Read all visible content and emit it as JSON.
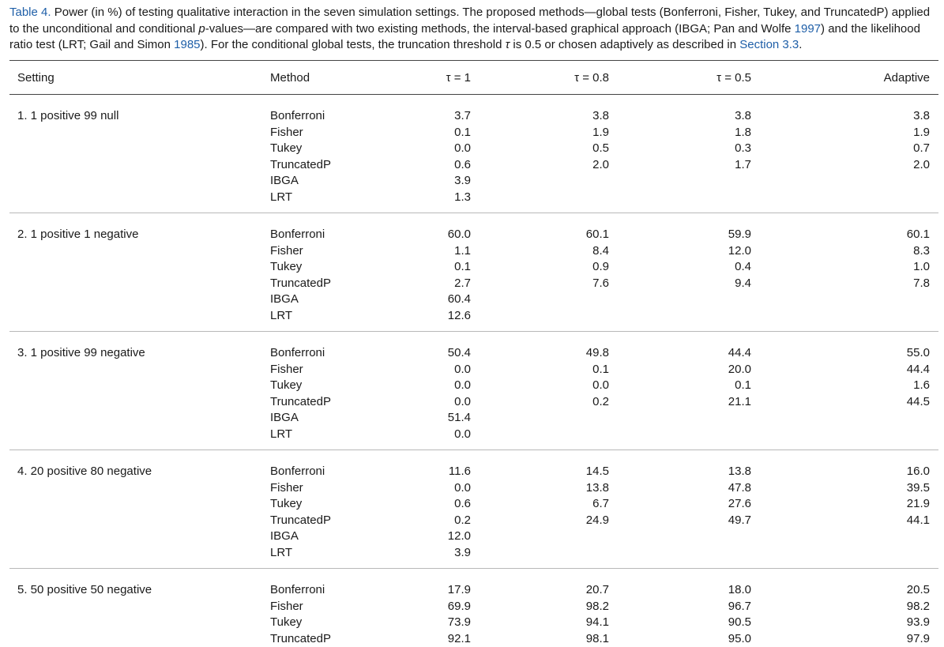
{
  "caption": {
    "label": "Table 4.",
    "text_a": "Power (in %) of testing qualitative interaction in the seven simulation settings. The proposed methods—global tests (Bonferroni, Fisher, Tukey, and TruncatedP) applied to the unconditional and conditional ",
    "p_italic": "p",
    "text_b": "-values—are compared with two existing methods, the interval-based graphical approach (IBGA; Pan and Wolfe ",
    "ref1": "1997",
    "text_c": ") and the likelihood ratio test (LRT; Gail and Simon ",
    "ref2": "1985",
    "text_d": "). For the conditional global tests, the truncation threshold ",
    "tau_symbol": "τ",
    "text_e": " is 0.5 or chosen adaptively as described in ",
    "section_ref": "Section 3.3",
    "text_f": "."
  },
  "table": {
    "headers": {
      "setting": "Setting",
      "method": "Method",
      "tau1": "τ = 1",
      "tau08": "τ = 0.8",
      "tau05": "τ = 0.5",
      "adaptive": "Adaptive"
    },
    "groups": [
      {
        "setting": "1. 1 positive 99 null",
        "rows": [
          {
            "method": "Bonferroni",
            "t1": "3.7",
            "t08": "3.8",
            "t05": "3.8",
            "adaptive": "3.8"
          },
          {
            "method": "Fisher",
            "t1": "0.1",
            "t08": "1.9",
            "t05": "1.8",
            "adaptive": "1.9"
          },
          {
            "method": "Tukey",
            "t1": "0.0",
            "t08": "0.5",
            "t05": "0.3",
            "adaptive": "0.7"
          },
          {
            "method": "TruncatedP",
            "t1": "0.6",
            "t08": "2.0",
            "t05": "1.7",
            "adaptive": "2.0"
          },
          {
            "method": "IBGA",
            "t1": "3.9",
            "t08": "",
            "t05": "",
            "adaptive": ""
          },
          {
            "method": "LRT",
            "t1": "1.3",
            "t08": "",
            "t05": "",
            "adaptive": ""
          }
        ]
      },
      {
        "setting": "2. 1 positive 1 negative",
        "rows": [
          {
            "method": "Bonferroni",
            "t1": "60.0",
            "t08": "60.1",
            "t05": "59.9",
            "adaptive": "60.1"
          },
          {
            "method": "Fisher",
            "t1": "1.1",
            "t08": "8.4",
            "t05": "12.0",
            "adaptive": "8.3"
          },
          {
            "method": "Tukey",
            "t1": "0.1",
            "t08": "0.9",
            "t05": "0.4",
            "adaptive": "1.0"
          },
          {
            "method": "TruncatedP",
            "t1": "2.7",
            "t08": "7.6",
            "t05": "9.4",
            "adaptive": "7.8"
          },
          {
            "method": "IBGA",
            "t1": "60.4",
            "t08": "",
            "t05": "",
            "adaptive": ""
          },
          {
            "method": "LRT",
            "t1": "12.6",
            "t08": "",
            "t05": "",
            "adaptive": ""
          }
        ]
      },
      {
        "setting": "3. 1 positive 99 negative",
        "rows": [
          {
            "method": "Bonferroni",
            "t1": "50.4",
            "t08": "49.8",
            "t05": "44.4",
            "adaptive": "55.0"
          },
          {
            "method": "Fisher",
            "t1": "0.0",
            "t08": "0.1",
            "t05": "20.0",
            "adaptive": "44.4"
          },
          {
            "method": "Tukey",
            "t1": "0.0",
            "t08": "0.0",
            "t05": "0.1",
            "adaptive": "1.6"
          },
          {
            "method": "TruncatedP",
            "t1": "0.0",
            "t08": "0.2",
            "t05": "21.1",
            "adaptive": "44.5"
          },
          {
            "method": "IBGA",
            "t1": "51.4",
            "t08": "",
            "t05": "",
            "adaptive": ""
          },
          {
            "method": "LRT",
            "t1": "0.0",
            "t08": "",
            "t05": "",
            "adaptive": ""
          }
        ]
      },
      {
        "setting": "4. 20 positive 80 negative",
        "rows": [
          {
            "method": "Bonferroni",
            "t1": "11.6",
            "t08": "14.5",
            "t05": "13.8",
            "adaptive": "16.0"
          },
          {
            "method": "Fisher",
            "t1": "0.0",
            "t08": "13.8",
            "t05": "47.8",
            "adaptive": "39.5"
          },
          {
            "method": "Tukey",
            "t1": "0.6",
            "t08": "6.7",
            "t05": "27.6",
            "adaptive": "21.9"
          },
          {
            "method": "TruncatedP",
            "t1": "0.2",
            "t08": "24.9",
            "t05": "49.7",
            "adaptive": "44.1"
          },
          {
            "method": "IBGA",
            "t1": "12.0",
            "t08": "",
            "t05": "",
            "adaptive": ""
          },
          {
            "method": "LRT",
            "t1": "3.9",
            "t08": "",
            "t05": "",
            "adaptive": ""
          }
        ]
      },
      {
        "setting": "5. 50 positive 50 negative",
        "rows": [
          {
            "method": "Bonferroni",
            "t1": "17.9",
            "t08": "20.7",
            "t05": "18.0",
            "adaptive": "20.5"
          },
          {
            "method": "Fisher",
            "t1": "69.9",
            "t08": "98.2",
            "t05": "96.7",
            "adaptive": "98.2"
          },
          {
            "method": "Tukey",
            "t1": "73.9",
            "t08": "94.1",
            "t05": "90.5",
            "adaptive": "93.9"
          },
          {
            "method": "TruncatedP",
            "t1": "92.1",
            "t08": "98.1",
            "t05": "95.0",
            "adaptive": "97.9"
          }
        ]
      }
    ]
  }
}
